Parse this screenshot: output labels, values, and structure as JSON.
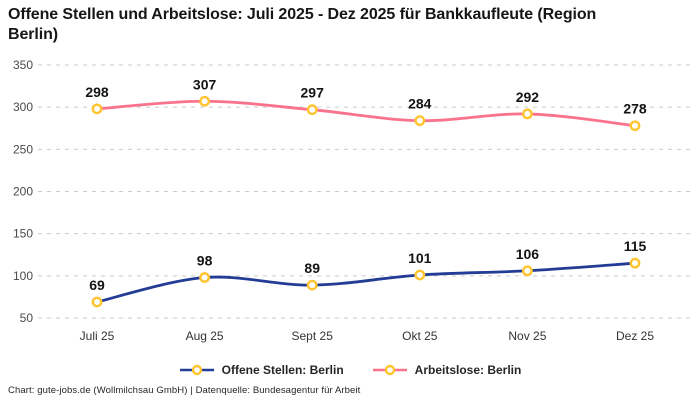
{
  "title": "Offene Stellen und Arbeitslose: Juli 2025 - Dez 2025 für Bankkaufleute (Region Berlin)",
  "footer_note": "Chart: gute-jobs.de (Wollmilchsau GmbH) | Datenquelle: Bundesagentur für Arbeit",
  "colors": {
    "offene_stellen": "#233D96",
    "arbeitslose": "#FA738C",
    "marker_ring": "#FFC430",
    "marker_fill": "#FFFFFF",
    "grid": "#CBCBCB",
    "axis_text": "#4A4A4A",
    "data_label_text": "#141414",
    "title_text": "#161616"
  },
  "chart_data": {
    "type": "line",
    "title": "Offene Stellen und Arbeitslose: Juli 2025 - Dez 2025 für Bankkaufleute (Region Berlin)",
    "categories": [
      "Juli 25",
      "Aug 25",
      "Sept 25",
      "Okt 25",
      "Nov 25",
      "Dez 25"
    ],
    "series": [
      {
        "name": "Offene Stellen: Berlin",
        "color_key": "offene_stellen",
        "values": [
          69,
          98,
          89,
          101,
          106,
          115
        ]
      },
      {
        "name": "Arbeitslose: Berlin",
        "color_key": "arbeitslose",
        "values": [
          298,
          307,
          297,
          284,
          292,
          278
        ]
      }
    ],
    "yticks": [
      350,
      300,
      250,
      200,
      150,
      100,
      50
    ],
    "ylim": [
      50,
      350
    ],
    "xlabel": "",
    "ylabel": "",
    "grid": true,
    "grid_style": "dashed",
    "legend_position": "bottom",
    "marker": "open-circle"
  }
}
